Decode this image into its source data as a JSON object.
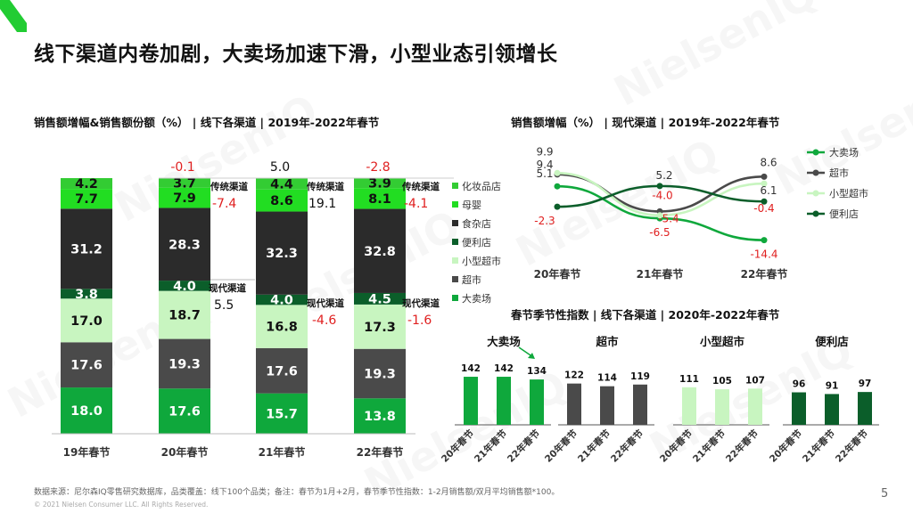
{
  "title": "线下渠道内卷加剧，大卖场加速下滑，小型业态引领增长",
  "footer": {
    "source": "数据来源：尼尔森IQ零售研究数据库，品类覆盖：线下100个品类；备注：春节为1月+2月，春节季节性指数：1-2月销售额/双月平均销售额*100。",
    "copyright": "© 2021 Nielsen Consumer LLC. All Rights Reserved.",
    "page": "5"
  },
  "watermark": "NielsenIQ",
  "colors": {
    "cosmetics": "#33cc33",
    "baby": "#22dd22",
    "grocery": "#2b2b2b",
    "convenience": "#0b5e2a",
    "mini": "#c8f5c0",
    "super": "#4a4a4a",
    "hyper": "#0fa83c",
    "negative": "#e02020",
    "logo": "#22cc33"
  },
  "chart_data": [
    {
      "type": "bar",
      "stacked": true,
      "title": "销售额增幅&销售额份额（%） | 线下各渠道 | 2019年-2022年春节",
      "categories": [
        "19年春节",
        "20年春节",
        "21年春节",
        "22年春节"
      ],
      "series": [
        {
          "name": "大卖场",
          "color_key": "hyper",
          "values": [
            18.0,
            17.6,
            15.7,
            13.8
          ]
        },
        {
          "name": "超市",
          "color_key": "super",
          "values": [
            17.6,
            19.3,
            17.6,
            19.3
          ]
        },
        {
          "name": "小型超市",
          "color_key": "mini",
          "values": [
            17.0,
            18.7,
            16.8,
            17.3
          ]
        },
        {
          "name": "便利店",
          "color_key": "convenience",
          "values": [
            3.8,
            4.0,
            4.0,
            4.5
          ]
        },
        {
          "name": "食杂店",
          "color_key": "grocery",
          "values": [
            31.2,
            28.3,
            32.3,
            32.8
          ]
        },
        {
          "name": "母婴",
          "color_key": "baby",
          "values": [
            7.7,
            7.9,
            8.6,
            8.1
          ]
        },
        {
          "name": "化妆品店",
          "color_key": "cosmetics",
          "values": [
            4.2,
            3.7,
            4.4,
            3.9
          ]
        }
      ],
      "value_labels": [
        [
          "18.0",
          "17.6",
          "17.0",
          "3.8",
          "31.2",
          "7.7",
          "4.2"
        ],
        [
          "17.6",
          "19.3",
          "18.7",
          "4.0",
          "28.3",
          "7.9",
          "3.7"
        ],
        [
          "15.7",
          "17.6",
          "16.8",
          "4.0",
          "32.3",
          "8.6",
          "4.4"
        ],
        [
          "13.8",
          "19.3",
          "17.3",
          "4.5",
          "32.8",
          "8.1",
          "3.9"
        ]
      ],
      "legend_order": [
        "化妆品店",
        "母婴",
        "食杂店",
        "便利店",
        "小型超市",
        "超市",
        "大卖场"
      ],
      "legend_position": "right",
      "total_growth": [
        "-0.1",
        "5.0",
        "-2.8"
      ],
      "traditional_label": "传统渠道",
      "traditional_growth": [
        "-7.4",
        "19.1",
        "-4.1"
      ],
      "modern_label": "现代渠道",
      "modern_growth": [
        "5.5",
        "-4.6",
        "-1.6"
      ]
    },
    {
      "type": "line",
      "title": "销售额增幅（%） | 现代渠道 | 2019年-2022年春节",
      "x": [
        "20年春节",
        "21年春节",
        "22年春节"
      ],
      "series": [
        {
          "name": "大卖场",
          "color_key": "hyper",
          "values": [
            5.1,
            -6.5,
            -14.4
          ],
          "labels": [
            "5.1",
            "-6.5",
            "-14.4"
          ]
        },
        {
          "name": "超市",
          "color_key": "super",
          "values": [
            9.4,
            -4.0,
            8.6
          ],
          "labels": [
            "9.4",
            "-4.0",
            "8.6"
          ]
        },
        {
          "name": "小型超市",
          "color_key": "mini",
          "values": [
            9.9,
            -5.4,
            6.1
          ],
          "labels": [
            "9.9",
            "-5.4",
            "6.1"
          ]
        },
        {
          "name": "便利店",
          "color_key": "convenience",
          "values": [
            -2.3,
            5.2,
            -0.4
          ],
          "labels": [
            "-2.3",
            "5.2",
            "-0.4"
          ]
        }
      ],
      "legend_position": "right"
    },
    {
      "type": "bar",
      "title": "春节季节性指数 | 线下各渠道 | 2020年-2022年春节",
      "categories": [
        "20年春节",
        "21年春节",
        "22年春节"
      ],
      "groups": [
        {
          "name": "大卖场",
          "color_key": "hyper",
          "values": [
            142,
            142,
            134
          ]
        },
        {
          "name": "超市",
          "color_key": "super",
          "values": [
            122,
            114,
            119
          ]
        },
        {
          "name": "小型超市",
          "color_key": "mini",
          "values": [
            111,
            105,
            107
          ]
        },
        {
          "name": "便利店",
          "color_key": "convenience",
          "values": [
            96,
            91,
            97
          ]
        }
      ]
    }
  ]
}
